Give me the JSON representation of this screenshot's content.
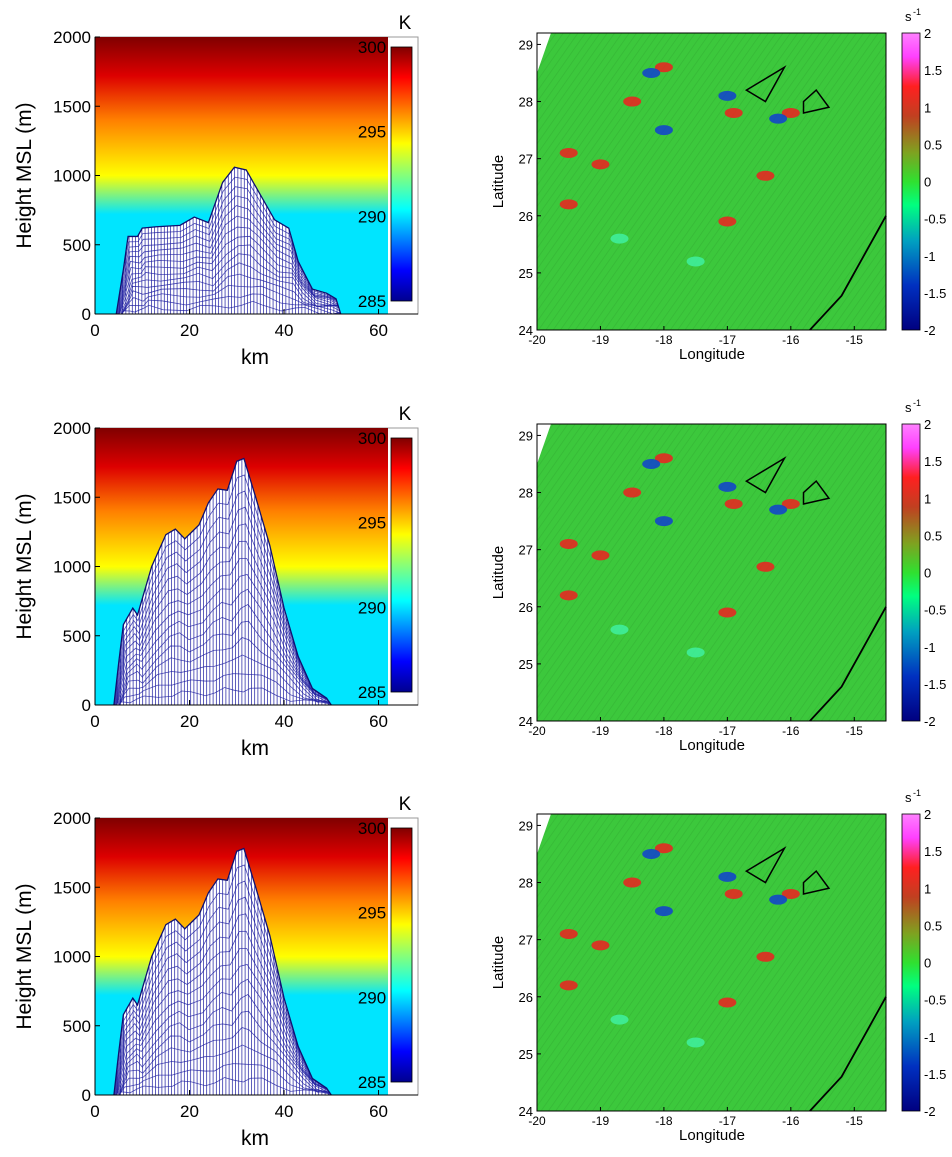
{
  "chart_data": [
    {
      "type": "surface",
      "panel": "row-1-left",
      "xlabel": "km",
      "ylabel": "Height MSL (m)",
      "xlim": [
        0,
        62
      ],
      "ylim": [
        0,
        2000
      ],
      "xticks": [
        "0",
        "20",
        "40",
        "60"
      ],
      "yticks": [
        "0",
        "500",
        "1000",
        "1500",
        "2000"
      ],
      "colorbar": {
        "unit": "K",
        "min": 285,
        "max": 300,
        "ticks": [
          "285",
          "290",
          "295",
          "300"
        ]
      },
      "background_gradient": "potential temperature increasing with height",
      "terrain_profile": [
        [
          4.5,
          0
        ],
        [
          6,
          320
        ],
        [
          7,
          560
        ],
        [
          9,
          560
        ],
        [
          10,
          620
        ],
        [
          13,
          630
        ],
        [
          18,
          640
        ],
        [
          21,
          700
        ],
        [
          24,
          660
        ],
        [
          27,
          950
        ],
        [
          29.5,
          1060
        ],
        [
          32,
          1040
        ],
        [
          34,
          920
        ],
        [
          38,
          680
        ],
        [
          41,
          620
        ],
        [
          43,
          380
        ],
        [
          46,
          180
        ],
        [
          49,
          150
        ],
        [
          51,
          110
        ],
        [
          52,
          0
        ]
      ]
    },
    {
      "type": "heatmap",
      "panel": "row-1-right",
      "xlabel": "Longitude",
      "ylabel": "Latitude",
      "xlim": [
        -20,
        -14.5
      ],
      "ylim": [
        24,
        29.2
      ],
      "xticks": [
        "-20",
        "-19",
        "-18",
        "-17",
        "-16",
        "-15"
      ],
      "yticks": [
        "24",
        "25",
        "26",
        "27",
        "28",
        "29"
      ],
      "colorbar": {
        "unit": "s",
        "exponent": "-1",
        "min": -2,
        "max": 2,
        "ticks": [
          "2",
          "1.5",
          "1",
          "0.5",
          "0",
          "-0.5",
          "-1",
          "-1.5",
          "-2"
        ]
      },
      "field": "vorticity, mostly near 0 with red (positive) and blue (negative) eddy streets downstream of islands",
      "island_outlines": [
        [
          [
            -16.7,
            28.2
          ],
          [
            -16.1,
            28.6
          ],
          [
            -16.4,
            28.0
          ],
          [
            -16.7,
            28.2
          ]
        ],
        [
          [
            -15.8,
            27.8
          ],
          [
            -15.4,
            27.9
          ],
          [
            -15.6,
            28.2
          ],
          [
            -15.8,
            28.0
          ],
          [
            -15.8,
            27.8
          ]
        ]
      ],
      "coastline": [
        [
          -15.7,
          24.0
        ],
        [
          -15.2,
          24.6
        ],
        [
          -14.8,
          25.4
        ],
        [
          -14.5,
          26.0
        ]
      ]
    },
    {
      "type": "surface",
      "panel": "row-2-left",
      "xlabel": "km",
      "ylabel": "Height MSL (m)",
      "xlim": [
        0,
        62
      ],
      "ylim": [
        0,
        2000
      ],
      "xticks": [
        "0",
        "20",
        "40",
        "60"
      ],
      "yticks": [
        "0",
        "500",
        "1000",
        "1500",
        "2000"
      ],
      "colorbar": {
        "unit": "K",
        "min": 285,
        "max": 300,
        "ticks": [
          "285",
          "290",
          "295",
          "300"
        ]
      },
      "background_gradient": "potential temperature increasing with height",
      "terrain_profile": [
        [
          4,
          0
        ],
        [
          5,
          300
        ],
        [
          6,
          580
        ],
        [
          8,
          700
        ],
        [
          9,
          650
        ],
        [
          12,
          1000
        ],
        [
          15,
          1230
        ],
        [
          17,
          1270
        ],
        [
          19,
          1200
        ],
        [
          22,
          1300
        ],
        [
          24,
          1460
        ],
        [
          26,
          1560
        ],
        [
          28,
          1550
        ],
        [
          30,
          1760
        ],
        [
          31.5,
          1780
        ],
        [
          34,
          1500
        ],
        [
          37,
          1150
        ],
        [
          40,
          700
        ],
        [
          43,
          350
        ],
        [
          46,
          120
        ],
        [
          49,
          50
        ],
        [
          50,
          0
        ]
      ]
    },
    {
      "type": "heatmap",
      "panel": "row-2-right",
      "xlabel": "Longitude",
      "ylabel": "Latitude",
      "xlim": [
        -20,
        -14.5
      ],
      "ylim": [
        24,
        29.2
      ],
      "xticks": [
        "-20",
        "-19",
        "-18",
        "-17",
        "-16",
        "-15"
      ],
      "yticks": [
        "24",
        "25",
        "26",
        "27",
        "28",
        "29"
      ],
      "colorbar": {
        "unit": "s",
        "exponent": "-1",
        "min": -2,
        "max": 2,
        "ticks": [
          "2",
          "1.5",
          "1",
          "0.5",
          "0",
          "-0.5",
          "-1",
          "-1.5",
          "-2"
        ]
      },
      "field": "vorticity, mostly near 0 with isolated red and blue eddies downstream of islands",
      "island_outlines": [
        [
          [
            -16.7,
            28.2
          ],
          [
            -16.1,
            28.6
          ],
          [
            -16.4,
            28.0
          ],
          [
            -16.7,
            28.2
          ]
        ],
        [
          [
            -15.8,
            27.8
          ],
          [
            -15.4,
            27.9
          ],
          [
            -15.6,
            28.2
          ],
          [
            -15.8,
            28.0
          ],
          [
            -15.8,
            27.8
          ]
        ]
      ],
      "coastline": [
        [
          -15.7,
          24.0
        ],
        [
          -15.2,
          24.6
        ],
        [
          -14.8,
          25.4
        ],
        [
          -14.5,
          26.0
        ]
      ]
    },
    {
      "type": "surface",
      "panel": "row-3-left",
      "xlabel": "km",
      "ylabel": "Height MSL (m)",
      "xlim": [
        0,
        62
      ],
      "ylim": [
        0,
        2000
      ],
      "xticks": [
        "0",
        "20",
        "40",
        "60"
      ],
      "yticks": [
        "0",
        "500",
        "1000",
        "1500",
        "2000"
      ],
      "colorbar": {
        "unit": "K",
        "min": 285,
        "max": 300,
        "ticks": [
          "285",
          "290",
          "295",
          "300"
        ]
      },
      "background_gradient": "potential temperature increasing with height",
      "terrain_profile": [
        [
          4,
          0
        ],
        [
          5,
          300
        ],
        [
          6,
          580
        ],
        [
          8,
          700
        ],
        [
          9,
          650
        ],
        [
          12,
          1000
        ],
        [
          15,
          1230
        ],
        [
          17,
          1270
        ],
        [
          19,
          1200
        ],
        [
          22,
          1300
        ],
        [
          24,
          1460
        ],
        [
          26,
          1560
        ],
        [
          28,
          1550
        ],
        [
          30,
          1760
        ],
        [
          31.5,
          1780
        ],
        [
          34,
          1500
        ],
        [
          37,
          1150
        ],
        [
          40,
          700
        ],
        [
          43,
          350
        ],
        [
          46,
          120
        ],
        [
          49,
          50
        ],
        [
          50,
          0
        ]
      ]
    },
    {
      "type": "heatmap",
      "panel": "row-3-right",
      "xlabel": "Longitude",
      "ylabel": "Latitude",
      "xlim": [
        -20,
        -14.5
      ],
      "ylim": [
        24,
        29.2
      ],
      "xticks": [
        "-20",
        "-19",
        "-18",
        "-17",
        "-16",
        "-15"
      ],
      "yticks": [
        "24",
        "25",
        "26",
        "27",
        "28",
        "29"
      ],
      "colorbar": {
        "unit": "s",
        "exponent": "-1",
        "min": -2,
        "max": 2,
        "ticks": [
          "2",
          "1.5",
          "1",
          "0.5",
          "0",
          "-0.5",
          "-1",
          "-1.5",
          "-2"
        ]
      },
      "field": "vorticity, mostly near 0 with isolated red and blue eddies downstream of islands",
      "island_outlines": [
        [
          [
            -16.7,
            28.2
          ],
          [
            -16.1,
            28.6
          ],
          [
            -16.4,
            28.0
          ],
          [
            -16.7,
            28.2
          ]
        ],
        [
          [
            -15.8,
            27.8
          ],
          [
            -15.4,
            27.9
          ],
          [
            -15.6,
            28.2
          ],
          [
            -15.8,
            28.0
          ],
          [
            -15.8,
            27.8
          ]
        ]
      ],
      "coastline": [
        [
          -15.7,
          24.0
        ],
        [
          -15.2,
          24.6
        ],
        [
          -14.8,
          25.4
        ],
        [
          -14.5,
          26.0
        ]
      ]
    }
  ]
}
